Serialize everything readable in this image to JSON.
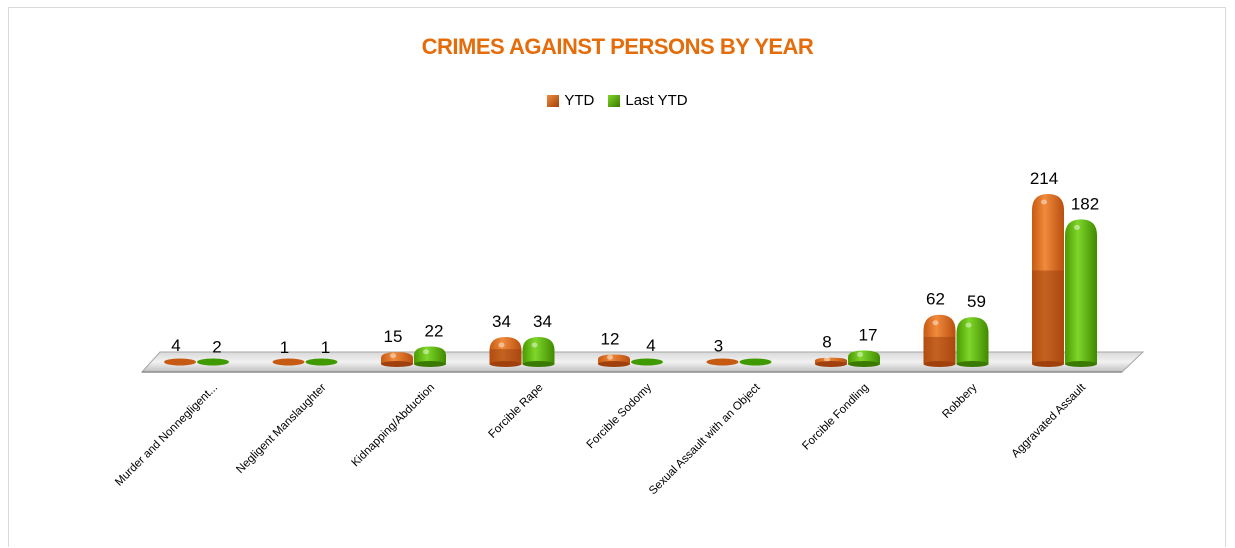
{
  "chart_data": {
    "type": "bar",
    "title": "CRIMES AGAINST PERSONS BY YEAR",
    "categories": [
      "Murder and Nonnegligent...",
      "Negligent Manslaughter",
      "Kidnapping/Abduction",
      "Forcible Rape",
      "Forcible Sodomy",
      "Sexual Assault with an Object",
      "Forcible Fondling",
      "Robbery",
      "Aggravated Assault"
    ],
    "series": [
      {
        "name": "YTD",
        "values": [
          4,
          1,
          15,
          34,
          12,
          3,
          8,
          62,
          214
        ],
        "color": "#e46c0a",
        "dark": "#a0410d"
      },
      {
        "name": "Last YTD",
        "values": [
          2,
          1,
          22,
          34,
          4,
          0,
          17,
          59,
          182
        ],
        "color": "#5cb800",
        "dark": "#3a7a00"
      }
    ],
    "value_labels": [
      [
        "4",
        "1",
        "15",
        "34",
        "12",
        "3",
        "8",
        "62",
        "214"
      ],
      [
        "2",
        "1",
        "22",
        "34",
        "4",
        "",
        "17",
        "59",
        "182"
      ]
    ],
    "legend_position": "top",
    "grid": false,
    "ylim": [
      0,
      214
    ]
  }
}
